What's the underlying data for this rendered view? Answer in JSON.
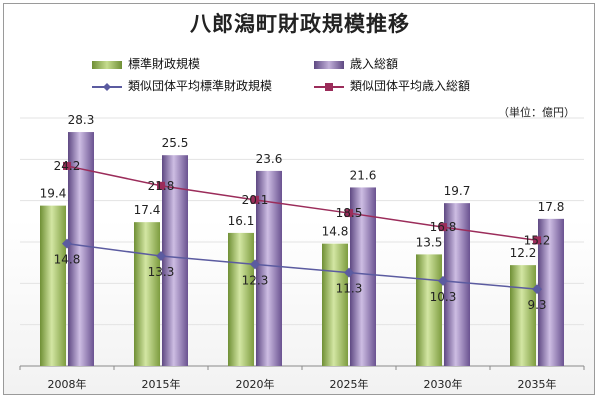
{
  "chart_data": {
    "type": "bar",
    "title": "八郎潟町財政規模推移",
    "unit_note": "（単位：億円）",
    "categories": [
      "2008年",
      "2015年",
      "2020年",
      "2025年",
      "2030年",
      "2035年"
    ],
    "ylim": [
      0,
      30
    ],
    "grid": true,
    "legend": "top",
    "series": [
      {
        "name": "標準財政規模",
        "kind": "bar",
        "color": "#9bbb59",
        "values": [
          19.4,
          17.4,
          16.1,
          14.8,
          13.5,
          12.2
        ]
      },
      {
        "name": "歳入総額",
        "kind": "bar",
        "color": "#8064a2",
        "values": [
          28.3,
          25.5,
          23.6,
          21.6,
          19.7,
          17.8
        ]
      },
      {
        "name": "類似団体平均標準財政規模",
        "kind": "line",
        "color": "#5b5ba0",
        "marker": "diamond",
        "values": [
          14.8,
          13.3,
          12.3,
          11.3,
          10.3,
          9.3
        ]
      },
      {
        "name": "類似団体平均歳入総額",
        "kind": "line",
        "color": "#9b2c5a",
        "marker": "square",
        "values": [
          24.2,
          21.8,
          20.1,
          18.5,
          16.8,
          15.2
        ]
      }
    ]
  }
}
